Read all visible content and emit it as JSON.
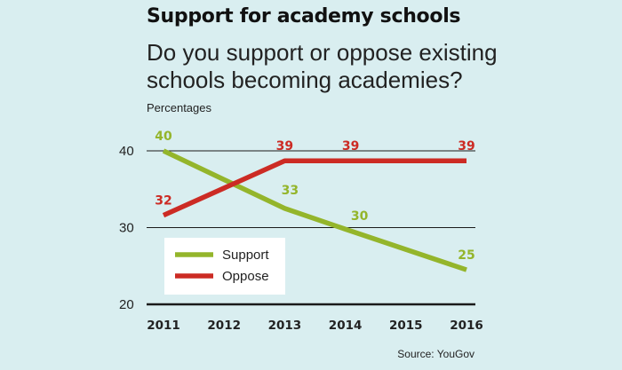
{
  "chart_data": {
    "type": "line",
    "title": "Support for academy schools",
    "subtitle": "Do you support or oppose existing schools becoming academies?",
    "ylabel": "Percentages",
    "xlabel": "",
    "x": [
      "2011",
      "2012",
      "2013",
      "2014",
      "2015",
      "2016"
    ],
    "ylim": [
      20,
      40
    ],
    "yticks": [
      20,
      30,
      40
    ],
    "grid": true,
    "legend_placement": "bottom-left",
    "series": [
      {
        "name": "Support",
        "color": "#94b52b",
        "points": [
          [
            2011,
            40
          ],
          [
            2013,
            32.5
          ],
          [
            2014,
            29.8
          ],
          [
            2016,
            24.5
          ]
        ],
        "labels": [
          {
            "x": 2011,
            "y": 40,
            "text": "40"
          },
          {
            "x": 2013,
            "y": 32.5,
            "text": "33"
          },
          {
            "x": 2014,
            "y": 29.8,
            "text": "30"
          },
          {
            "x": 2016,
            "y": 24.5,
            "text": "25"
          }
        ]
      },
      {
        "name": "Oppose",
        "color": "#cc2b24",
        "points": [
          [
            2011,
            31.6
          ],
          [
            2013,
            38.7
          ],
          [
            2016,
            38.7
          ]
        ],
        "labels": [
          {
            "x": 2011,
            "y": 31.6,
            "text": "32"
          },
          {
            "x": 2013,
            "y": 38.7,
            "text": "39"
          },
          {
            "x": 2014,
            "y": 38.7,
            "text": "39"
          },
          {
            "x": 2016,
            "y": 38.7,
            "text": "39"
          }
        ]
      }
    ]
  },
  "source": "Source: YouGov"
}
